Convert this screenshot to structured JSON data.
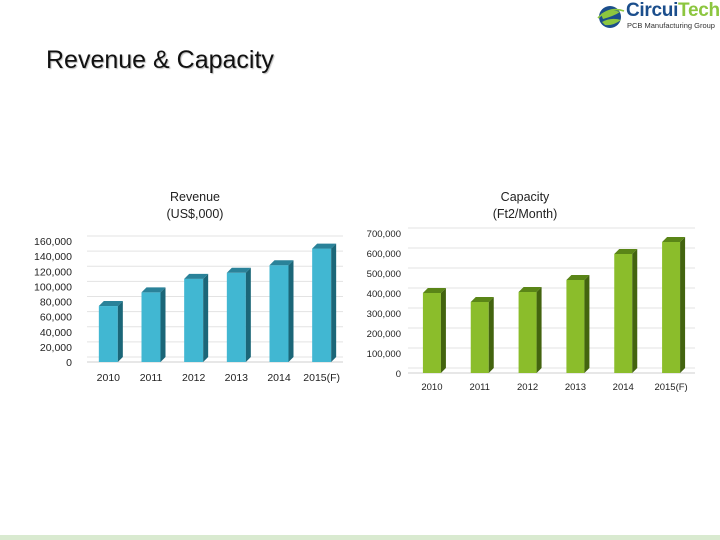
{
  "logo": {
    "name": "CircuiTech",
    "part1": "Circui",
    "part2": "Tech",
    "tagline": "PCB Manufacturing Group"
  },
  "page_title": "Revenue & Capacity",
  "colors": {
    "revenue_front": "#41b7d2",
    "revenue_side": "#1b6678",
    "revenue_top": "#2a8299",
    "capacity_front": "#8bbd2b",
    "capacity_side": "#43640f",
    "capacity_top": "#5a8517",
    "logo_blue": "#1b4e8c",
    "logo_green": "#8cc63f"
  },
  "chart_data": [
    {
      "type": "bar",
      "title": "Revenue",
      "subtitle": "(US$,000)",
      "categories": [
        "2010",
        "2011",
        "2012",
        "2013",
        "2014",
        "2015(F)"
      ],
      "values": [
        74000,
        92000,
        110000,
        118000,
        128000,
        150000
      ],
      "ylim": [
        0,
        160000
      ],
      "yticks": [
        0,
        20000,
        40000,
        60000,
        80000,
        100000,
        120000,
        140000,
        160000
      ],
      "ytick_labels": [
        "0",
        "20,000",
        "40,000",
        "60,000",
        "80,000",
        "100,000",
        "120,000",
        "140,000",
        "160,000"
      ],
      "grid": true,
      "legend": "none"
    },
    {
      "type": "bar",
      "title": "Capacity",
      "subtitle": "(Ft2/Month)",
      "categories": [
        "2010",
        "2011",
        "2012",
        "2013",
        "2014",
        "2015(F)"
      ],
      "values": [
        400000,
        355000,
        405000,
        465000,
        595000,
        655000
      ],
      "ylim": [
        0,
        700000
      ],
      "yticks": [
        0,
        100000,
        200000,
        300000,
        400000,
        500000,
        600000,
        700000
      ],
      "ytick_labels": [
        "0",
        "100,000",
        "200,000",
        "300,000",
        "400,000",
        "500,000",
        "600,000",
        "700,000"
      ],
      "grid": true,
      "legend": "none"
    }
  ]
}
